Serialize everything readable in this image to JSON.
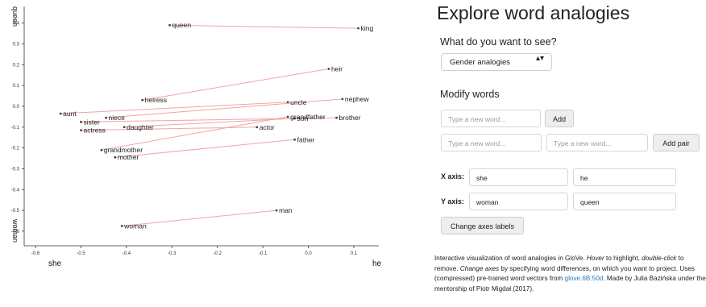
{
  "chart_data": {
    "type": "scatter",
    "x_axis": {
      "neg_label": "she",
      "pos_label": "he",
      "ticks": [
        -0.6,
        -0.5,
        -0.4,
        -0.3,
        -0.2,
        -0.1,
        0.0,
        0.1
      ],
      "tick_labels": [
        "-0.6",
        "-0.5",
        "-0.4",
        "-0.3",
        "-0.2",
        "-0.1",
        "0.0",
        "0.1"
      ],
      "xlim": [
        -0.625,
        0.155
      ]
    },
    "y_axis": {
      "neg_label": "woman",
      "pos_label": "queen",
      "ticks": [
        -0.6,
        -0.5,
        -0.4,
        -0.3,
        -0.2,
        -0.1,
        0.0,
        0.1,
        0.2,
        0.3,
        0.4
      ],
      "tick_labels": [
        "-0.6",
        "-0.5",
        "-0.4",
        "-0.3",
        "-0.2",
        "-0.1",
        "0.0",
        "0.1",
        "0.2",
        "0.3",
        "0.4"
      ],
      "ylim": [
        -0.67,
        0.48
      ]
    },
    "points": [
      {
        "word": "queen",
        "x": -0.305,
        "y": 0.39
      },
      {
        "word": "king",
        "x": 0.11,
        "y": 0.375
      },
      {
        "word": "heir",
        "x": 0.045,
        "y": 0.18
      },
      {
        "word": "heiress",
        "x": -0.365,
        "y": 0.03
      },
      {
        "word": "uncle",
        "x": -0.045,
        "y": 0.02
      },
      {
        "word": "nephew",
        "x": 0.075,
        "y": 0.035
      },
      {
        "word": "aunt",
        "x": -0.545,
        "y": -0.035
      },
      {
        "word": "niece",
        "x": -0.445,
        "y": -0.055
      },
      {
        "word": "sister",
        "x": -0.5,
        "y": -0.075
      },
      {
        "word": "grandfather",
        "x": -0.045,
        "y": -0.05
      },
      {
        "word": "brother",
        "x": 0.062,
        "y": -0.055
      },
      {
        "word": "son",
        "x": -0.03,
        "y": -0.058
      },
      {
        "word": "actress",
        "x": -0.5,
        "y": -0.115
      },
      {
        "word": "daughter",
        "x": -0.405,
        "y": -0.1
      },
      {
        "word": "actor",
        "x": -0.113,
        "y": -0.1
      },
      {
        "word": "father",
        "x": -0.03,
        "y": -0.16
      },
      {
        "word": "grandmother",
        "x": -0.455,
        "y": -0.21
      },
      {
        "word": "mother",
        "x": -0.425,
        "y": -0.245
      },
      {
        "word": "man",
        "x": -0.07,
        "y": -0.5
      },
      {
        "word": "woman",
        "x": -0.41,
        "y": -0.575
      }
    ],
    "pairs": [
      [
        "queen",
        "king"
      ],
      [
        "heiress",
        "heir"
      ],
      [
        "aunt",
        "uncle"
      ],
      [
        "niece",
        "nephew"
      ],
      [
        "sister",
        "brother"
      ],
      [
        "grandmother",
        "grandfather"
      ],
      [
        "daughter",
        "son"
      ],
      [
        "actress",
        "actor"
      ],
      [
        "mother",
        "father"
      ],
      [
        "woman",
        "man"
      ]
    ],
    "colors": {
      "line": "#f2a3a3",
      "point": "#444444",
      "axis": "#333333"
    }
  },
  "panel": {
    "title": "Explore word analogies",
    "see_heading": "What do you want to see?",
    "select_value": "Gender analogies",
    "select_arrow": "▴▾",
    "modify_heading": "Modify words",
    "single_placeholder": "Type a new word...",
    "add_label": "Add",
    "pair_placeholder1": "Type a new word...",
    "pair_placeholder2": "Type a new word...",
    "add_pair_label": "Add pair",
    "x_axis_label": "X axis:",
    "x_axis_value1": "she",
    "x_axis_value2": "he",
    "y_axis_label": "Y axis:",
    "y_axis_value1": "woman",
    "y_axis_value2": "queen",
    "change_axes_label": "Change axes labels",
    "desc_p1": "Interactive visualization of word analogies in GloVe. ",
    "desc_hover": "Hover",
    "desc_p2": " to highlight, ",
    "desc_dbl": "double-click",
    "desc_p3": " to remove. ",
    "desc_change": "Change axes",
    "desc_p4": " by specifying word differences, on which you want to project. Uses (compressed) pre-trained word vectors from ",
    "desc_link": "glove.6B.50d",
    "desc_p5": ". Made by Julia Bazińska under the mentorship of Piotr Migdał (2017).",
    "link_color": "#2a7ab0"
  }
}
